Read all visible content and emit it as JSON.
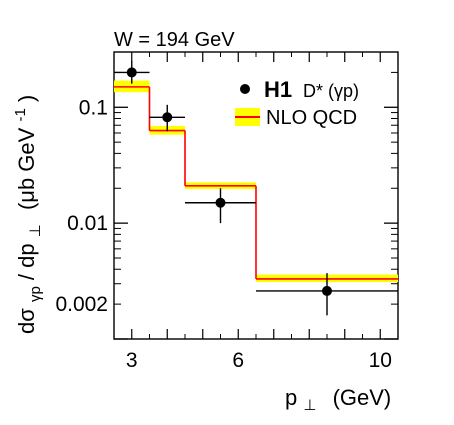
{
  "chart_data": {
    "type": "step",
    "header": "W = 194 GeV",
    "xlabel_main": "p",
    "xlabel_sub": "⊥",
    "xlabel_unit": "(GeV)",
    "ylabel_a": "dσ",
    "ylabel_a_sub": "γp",
    "ylabel_b": " / dp",
    "ylabel_b_sub": "⊥",
    "ylabel_c": "(μb GeV",
    "ylabel_c_sup": "-1",
    "ylabel_d": ")",
    "x_scale": "linear",
    "y_scale": "log",
    "xlim": [
      2.5,
      10.5
    ],
    "ylim": [
      0.001,
      0.3
    ],
    "x_ticks": [
      3,
      6,
      10
    ],
    "x_tick_labels": [
      "3",
      "6",
      "10"
    ],
    "y_ticks": [
      0.1,
      0.01,
      0.002
    ],
    "y_tick_labels": [
      "0.1",
      "0.01",
      "0.002"
    ],
    "legend_position": "top-right",
    "legend": {
      "data_label_bold": "H1",
      "data_label_rest": "D* (γp)",
      "theory_label": "NLO QCD"
    },
    "colors": {
      "theory_line": "#ff0000",
      "theory_band": "#ffff00",
      "data": "#000000"
    },
    "theory": {
      "bins": [
        [
          2.5,
          3.5
        ],
        [
          3.5,
          4.5
        ],
        [
          4.5,
          6.5
        ],
        [
          6.5,
          10.5
        ]
      ],
      "central": [
        0.15,
        0.063,
        0.021,
        0.0033
      ],
      "band_low": [
        0.135,
        0.058,
        0.0197,
        0.0031
      ],
      "band_high": [
        0.17,
        0.069,
        0.0225,
        0.0036
      ]
    },
    "data_points": [
      {
        "x": 3.0,
        "y": 0.2,
        "x_err": 0.5,
        "y_low": 0.16,
        "y_high": 0.25
      },
      {
        "x": 4.0,
        "y": 0.082,
        "x_err": 0.5,
        "y_low": 0.062,
        "y_high": 0.105
      },
      {
        "x": 5.5,
        "y": 0.015,
        "x_err": 1.0,
        "y_low": 0.01,
        "y_high": 0.02
      },
      {
        "x": 8.5,
        "y": 0.0026,
        "x_err": 2.0,
        "y_low": 0.0016,
        "y_high": 0.0037
      }
    ]
  }
}
